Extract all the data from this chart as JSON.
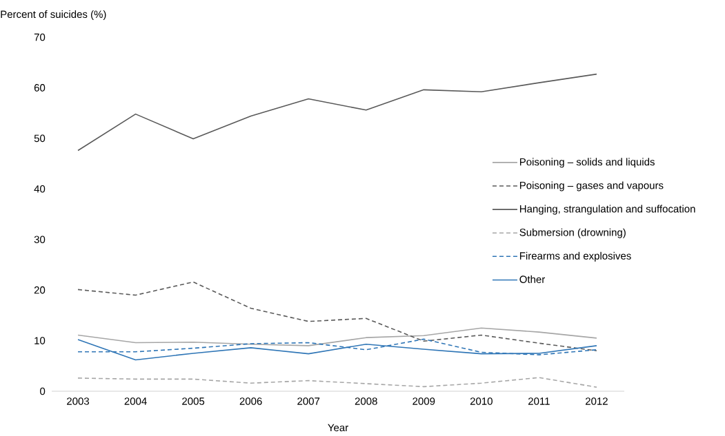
{
  "chart_data": {
    "type": "line",
    "ylabel": "Percent of suicides (%)",
    "xlabel": "Year",
    "categories": [
      "2003",
      "2004",
      "2005",
      "2006",
      "2007",
      "2008",
      "2009",
      "2010",
      "2011",
      "2012"
    ],
    "ylim": [
      0,
      70
    ],
    "yticks": [
      0,
      10,
      20,
      30,
      40,
      50,
      60,
      70
    ],
    "legend": "right",
    "series": [
      {
        "name": "Poisoning – solids and liquids",
        "color": "#a6a6a6",
        "line_style": "solid",
        "values": [
          11.1,
          9.6,
          9.7,
          9.3,
          9.0,
          10.6,
          11.0,
          12.5,
          11.7,
          10.5
        ]
      },
      {
        "name": "Poisoning – gases and vapours",
        "color": "#595959",
        "line_style": "dashed",
        "values": [
          20.1,
          19.0,
          21.6,
          16.4,
          13.8,
          14.4,
          9.9,
          11.1,
          9.5,
          8.0
        ]
      },
      {
        "name": "Hanging, strangulation and suffocation",
        "color": "#595959",
        "line_style": "solid",
        "values": [
          47.6,
          54.8,
          49.9,
          54.4,
          57.8,
          55.6,
          59.6,
          59.2,
          61.0,
          62.7
        ]
      },
      {
        "name": "Submersion (drowning)",
        "color": "#a6a6a6",
        "line_style": "dashed",
        "values": [
          2.6,
          2.4,
          2.4,
          1.6,
          2.1,
          1.5,
          0.9,
          1.6,
          2.7,
          0.8
        ]
      },
      {
        "name": "Firearms and explosives",
        "color": "#2e75b6",
        "line_style": "dashed",
        "values": [
          7.8,
          7.8,
          8.5,
          9.4,
          9.6,
          8.2,
          10.3,
          7.7,
          7.2,
          8.2
        ]
      },
      {
        "name": "Other",
        "color": "#2e75b6",
        "line_style": "solid",
        "values": [
          10.2,
          6.2,
          7.5,
          8.6,
          7.4,
          9.3,
          8.3,
          7.4,
          7.5,
          9.0
        ]
      }
    ]
  }
}
